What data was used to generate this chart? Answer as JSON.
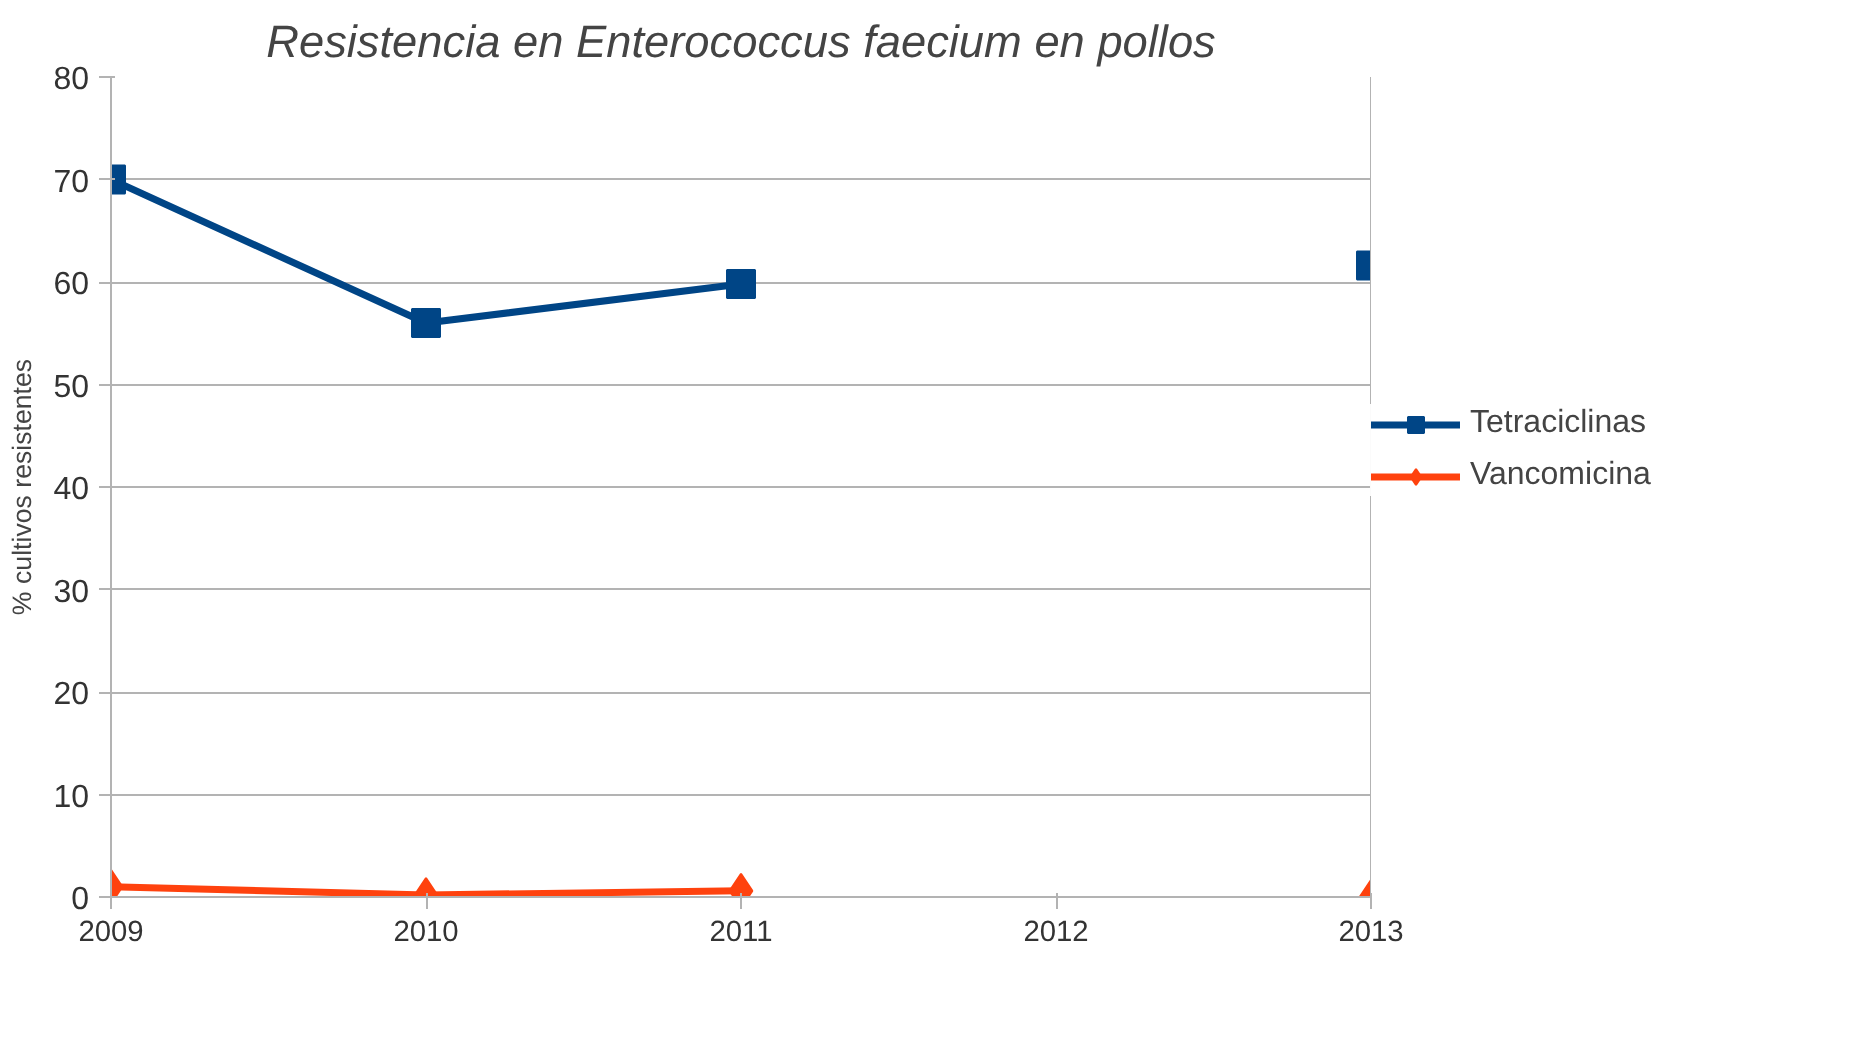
{
  "chart_data": {
    "type": "line",
    "title": "Resistencia en Enterococcus faecium en pollos",
    "ylabel": "% cultivos resistentes",
    "categories": [
      "2009",
      "2010",
      "2011",
      "2012",
      "2013"
    ],
    "series": [
      {
        "name": "Tetraciclinas",
        "color": "#004586",
        "marker": "square",
        "values": [
          70,
          56,
          59.8,
          null,
          61.6
        ]
      },
      {
        "name": "Vancomicina",
        "color": "#ff420e",
        "marker": "diamond",
        "values": [
          1,
          0.2,
          0.6,
          null,
          0
        ]
      }
    ],
    "ylim": [
      0,
      80
    ],
    "yticks": [
      0,
      10,
      20,
      30,
      40,
      50,
      60,
      70,
      80
    ],
    "grid": "y",
    "legend": "right",
    "line_style": "solid"
  }
}
